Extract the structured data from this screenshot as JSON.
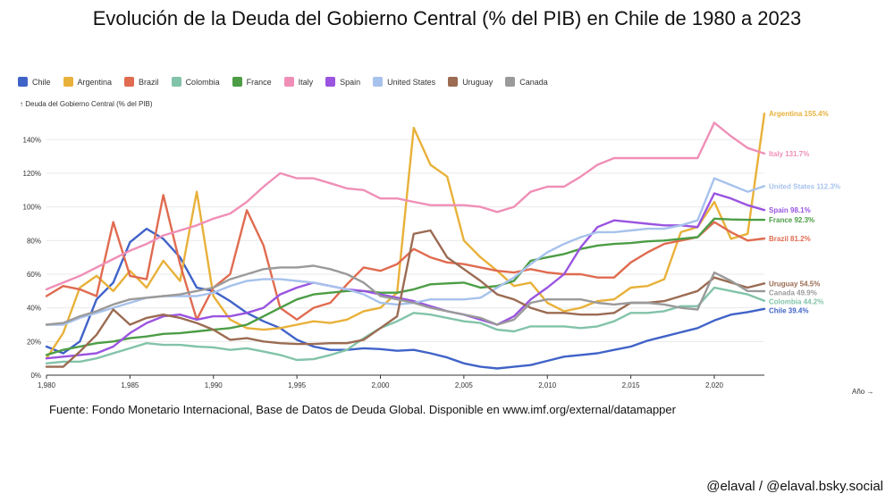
{
  "chart_data": {
    "type": "line",
    "title": "Evolución de la Deuda del Gobierno Central (% del PIB) en Chile de 1980 a 2023",
    "ylabel": "↑ Deuda del Gobierno Central (% del PIB)",
    "xlabel": "Año →",
    "xlim": [
      1980,
      2023
    ],
    "ylim": [
      0,
      155
    ],
    "y_ticks": [
      0,
      20,
      40,
      60,
      80,
      100,
      120,
      140
    ],
    "y_tick_labels": [
      "0%",
      "20%",
      "40%",
      "60%",
      "80%",
      "100%",
      "120%",
      "140%"
    ],
    "x_ticks": [
      1980,
      1985,
      1990,
      1995,
      2000,
      2005,
      2010,
      2015,
      2020
    ],
    "x_tick_labels": [
      "1,980",
      "1,985",
      "1,990",
      "1,995",
      "2,000",
      "2,005",
      "2,010",
      "2,015",
      "2,020"
    ],
    "grid": true,
    "legend_position": "top-left",
    "x": [
      1980,
      1981,
      1982,
      1983,
      1984,
      1985,
      1986,
      1987,
      1988,
      1989,
      1990,
      1991,
      1992,
      1993,
      1994,
      1995,
      1996,
      1997,
      1998,
      1999,
      2000,
      2001,
      2002,
      2003,
      2004,
      2005,
      2006,
      2007,
      2008,
      2009,
      2010,
      2011,
      2012,
      2013,
      2014,
      2015,
      2016,
      2017,
      2018,
      2019,
      2020,
      2021,
      2022,
      2023
    ],
    "series": [
      {
        "name": "Chile",
        "color": "#4063c8",
        "end_label": "Chile 39.4%",
        "values": [
          17,
          13,
          20,
          45,
          55,
          79,
          87,
          81,
          70,
          52,
          50,
          44,
          37,
          32,
          28,
          21,
          17,
          15,
          15,
          16,
          15.5,
          14.5,
          15,
          13,
          10.5,
          7,
          5,
          4,
          5,
          6,
          8.5,
          11,
          12,
          13,
          15,
          17,
          20.5,
          23,
          25.5,
          28,
          32.5,
          36,
          37.5,
          39.4
        ]
      },
      {
        "name": "Argentina",
        "color": "#e8b13a",
        "end_label": "Argentina 155.4%",
        "values": [
          10,
          25,
          52,
          59,
          50,
          62,
          52,
          68,
          56,
          109,
          47,
          33,
          28,
          27,
          28,
          30,
          32,
          31,
          33,
          38,
          40,
          49,
          147,
          125,
          118,
          80,
          70,
          62,
          53,
          55,
          43,
          38,
          40,
          44,
          45,
          52,
          53,
          57,
          85,
          88,
          103,
          81,
          84,
          155.4
        ]
      },
      {
        "name": "Brazil",
        "color": "#e06b50",
        "end_label": "Brazil 81.2%",
        "values": [
          47,
          53,
          51,
          47,
          91,
          59,
          57,
          107,
          66,
          33,
          52,
          60,
          98,
          77,
          40,
          33,
          40,
          43,
          54,
          64,
          62,
          66,
          75,
          70,
          67,
          66,
          64,
          62,
          61,
          63,
          61,
          60,
          60,
          58,
          58,
          67,
          73,
          78,
          80,
          82,
          91,
          85,
          80,
          81.2
        ]
      },
      {
        "name": "Colombia",
        "color": "#82c3a9",
        "end_label": "Colombia 44.2%",
        "values": [
          7,
          8,
          8,
          10,
          13,
          16,
          19,
          18,
          18,
          17,
          16.5,
          15,
          16,
          14,
          12,
          9,
          9.5,
          12,
          15,
          22,
          28,
          32,
          37,
          36,
          34,
          32,
          31,
          27,
          26,
          29,
          29,
          29,
          28,
          29,
          32,
          37,
          37,
          38,
          41,
          41,
          52,
          50,
          48,
          44.2
        ]
      },
      {
        "name": "France",
        "color": "#4c9d45",
        "end_label": "France 92.3%",
        "values": [
          12,
          15,
          17,
          19,
          20,
          22,
          23,
          24.5,
          25,
          26,
          27,
          28,
          30,
          35,
          40,
          45,
          48,
          49,
          50,
          50,
          49,
          49,
          51,
          54,
          54.5,
          55,
          52,
          53,
          56,
          68,
          70,
          72,
          75,
          77,
          78,
          78.5,
          79.5,
          80,
          81,
          82,
          93,
          92.5,
          92.3,
          92.3
        ]
      },
      {
        "name": "Italy",
        "color": "#ef8fb7",
        "end_label": "Italy 131.7%",
        "values": [
          51,
          55,
          59,
          64,
          69,
          74,
          78,
          83,
          86,
          89,
          93,
          96,
          103,
          112,
          120,
          117,
          117,
          114,
          111,
          110,
          105,
          105,
          103,
          101,
          101,
          101,
          100,
          97,
          100,
          109,
          112,
          112,
          118,
          125,
          129,
          129,
          129,
          129,
          129,
          129,
          150,
          142,
          135,
          131.7
        ]
      },
      {
        "name": "Spain",
        "color": "#9a54e0",
        "end_label": "Spain 98.1%",
        "values": [
          10,
          11,
          12,
          13,
          17,
          25,
          31,
          35,
          36,
          33,
          35,
          35,
          37,
          40,
          48,
          52,
          55,
          53,
          51,
          50,
          48,
          46,
          44,
          41,
          38,
          36,
          33,
          30,
          35,
          45,
          52,
          60,
          76,
          88,
          92,
          91,
          90,
          89,
          89,
          88,
          108,
          105,
          101,
          98.1
        ]
      },
      {
        "name": "United States",
        "color": "#a7c2ec",
        "end_label": "United States 112.3%",
        "values": [
          30,
          30,
          34,
          37,
          40,
          43,
          46,
          47,
          47,
          47,
          49,
          53,
          56,
          57,
          57,
          56,
          55,
          53,
          51,
          48,
          43,
          42,
          43,
          45,
          45,
          45,
          46,
          52,
          58,
          66,
          73,
          78,
          82,
          85,
          85,
          86,
          87,
          87,
          89,
          92,
          117,
          113,
          109,
          112.3
        ]
      },
      {
        "name": "Uruguay",
        "color": "#9b6b52",
        "end_label": "Uruguay 54.5%",
        "values": [
          5,
          5,
          14,
          24,
          39,
          30,
          34,
          36,
          34,
          31,
          27,
          21,
          22,
          20,
          19,
          18.5,
          18.5,
          19,
          19,
          21,
          28,
          35,
          84,
          86,
          70,
          63,
          56,
          48,
          45,
          40,
          37,
          37,
          36,
          36,
          37,
          43,
          43,
          44,
          47,
          50,
          58,
          55,
          52,
          54.5
        ]
      },
      {
        "name": "Canada",
        "color": "#9a9a9a",
        "end_label": "Canada 49.9%",
        "values": [
          30,
          31,
          35,
          38,
          42,
          45,
          46,
          47,
          48,
          50,
          52,
          57,
          60,
          63,
          64,
          64,
          65,
          63,
          60,
          55,
          47,
          45,
          43,
          40,
          38,
          36,
          34,
          30,
          33,
          43,
          45,
          45,
          45,
          43,
          42,
          43,
          43,
          42,
          40,
          39,
          61,
          56,
          50,
          49.9
        ]
      }
    ]
  },
  "source_text": "Fuente: Fondo Monetario Internacional, Base de Datos de Deuda Global. Disponible en www.imf.org/external/datamapper",
  "credit_text": "@elaval / @elaval.bsky.social"
}
